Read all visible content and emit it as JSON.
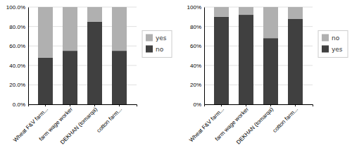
{
  "chart_data": [
    {
      "type": "bar",
      "stacked": true,
      "grid": true,
      "legend": "right",
      "categories": [
        "Wheat F&V farm...",
        "farm wage worker",
        "DEKHAN (tomarqa)",
        "cotton farm..."
      ],
      "series": [
        {
          "name": "no",
          "color": "#404040",
          "values": [
            0.48,
            0.55,
            0.85,
            0.55
          ]
        },
        {
          "name": "yes",
          "color": "#b0b0b0",
          "values": [
            0.52,
            0.45,
            0.15,
            0.45
          ]
        }
      ],
      "ylim": [
        0,
        1.0
      ],
      "yticks": [
        {
          "value": 0,
          "label": "0.0%"
        },
        {
          "value": 0.2,
          "label": "20.0%"
        },
        {
          "value": 0.4,
          "label": "40.0%"
        },
        {
          "value": 0.6,
          "label": "60.0%"
        },
        {
          "value": 0.8,
          "label": "80.0%"
        },
        {
          "value": 1.0,
          "label": "100.0%"
        }
      ]
    },
    {
      "type": "bar",
      "stacked": true,
      "grid": true,
      "legend": "right",
      "categories": [
        "Wheat F&V farm...",
        "farm wage worker",
        "DEKHAN (tomarqa)",
        "cotton farm..."
      ],
      "series": [
        {
          "name": "yes",
          "color": "#404040",
          "values": [
            0.9,
            0.92,
            0.68,
            0.88
          ]
        },
        {
          "name": "no",
          "color": "#b0b0b0",
          "values": [
            0.1,
            0.08,
            0.32,
            0.12
          ]
        }
      ],
      "ylim": [
        0,
        1.0
      ],
      "yticks": [
        {
          "value": 0,
          "label": "0%"
        },
        {
          "value": 0.2,
          "label": "20%"
        },
        {
          "value": 0.4,
          "label": "40%"
        },
        {
          "value": 0.6,
          "label": "60%"
        },
        {
          "value": 0.8,
          "label": "80%"
        },
        {
          "value": 1.0,
          "label": "100%"
        }
      ]
    }
  ]
}
